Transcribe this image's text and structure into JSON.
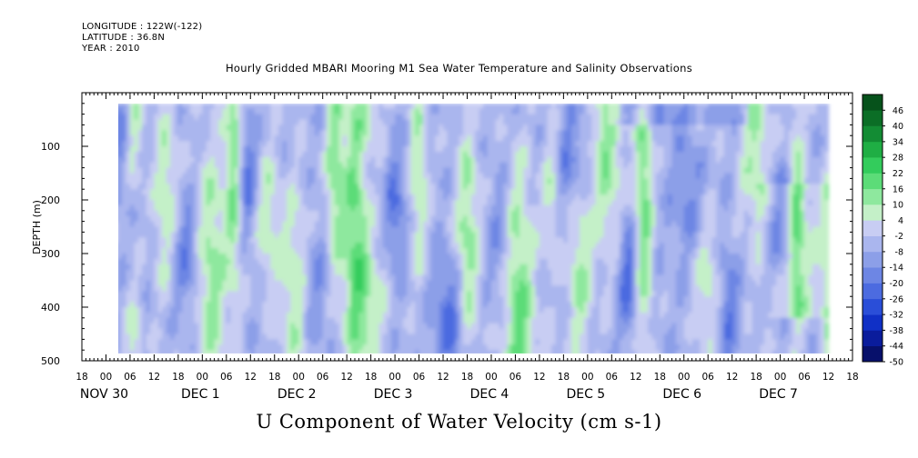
{
  "header": {
    "longitude": "LONGITUDE : 122W(-122)",
    "latitude": "LATITUDE : 36.8N",
    "year": "YEAR : 2010"
  },
  "chart_data": {
    "type": "heatmap",
    "title": "Hourly Gridded MBARI Mooring M1 Sea Water Temperature and Salinity Observations",
    "xlabel": "U Component of Water Velocity (cm s-1)",
    "ylabel": "DEPTH (m)",
    "y_axis": {
      "range": [
        0,
        500
      ],
      "inverted": true,
      "ticks": [
        100,
        200,
        300,
        400,
        500
      ],
      "data_top": 20,
      "data_bottom": 485
    },
    "x_axis": {
      "range_hours": [
        -6,
        186
      ],
      "data_start_hour": 0,
      "data_end_hour": 180,
      "hour_ticks": [
        {
          "h": -6,
          "label": "18"
        },
        {
          "h": 0,
          "label": "00"
        },
        {
          "h": 6,
          "label": "06"
        },
        {
          "h": 12,
          "label": "12"
        },
        {
          "h": 18,
          "label": "18"
        },
        {
          "h": 24,
          "label": "00"
        },
        {
          "h": 30,
          "label": "06"
        },
        {
          "h": 36,
          "label": "12"
        },
        {
          "h": 42,
          "label": "18"
        },
        {
          "h": 48,
          "label": "00"
        },
        {
          "h": 54,
          "label": "06"
        },
        {
          "h": 60,
          "label": "12"
        },
        {
          "h": 66,
          "label": "18"
        },
        {
          "h": 72,
          "label": "00"
        },
        {
          "h": 78,
          "label": "06"
        },
        {
          "h": 84,
          "label": "12"
        },
        {
          "h": 90,
          "label": "18"
        },
        {
          "h": 96,
          "label": "00"
        },
        {
          "h": 102,
          "label": "06"
        },
        {
          "h": 108,
          "label": "12"
        },
        {
          "h": 114,
          "label": "18"
        },
        {
          "h": 120,
          "label": "00"
        },
        {
          "h": 126,
          "label": "06"
        },
        {
          "h": 132,
          "label": "12"
        },
        {
          "h": 138,
          "label": "18"
        },
        {
          "h": 144,
          "label": "00"
        },
        {
          "h": 150,
          "label": "06"
        },
        {
          "h": 156,
          "label": "12"
        },
        {
          "h": 162,
          "label": "18"
        },
        {
          "h": 168,
          "label": "00"
        },
        {
          "h": 174,
          "label": "06"
        },
        {
          "h": 180,
          "label": "12"
        },
        {
          "h": 186,
          "label": "18"
        }
      ],
      "day_labels": [
        {
          "h": 0,
          "label": "NOV 30"
        },
        {
          "h": 24,
          "label": "DEC  1"
        },
        {
          "h": 48,
          "label": "DEC  2"
        },
        {
          "h": 72,
          "label": "DEC  3"
        },
        {
          "h": 96,
          "label": "DEC  4"
        },
        {
          "h": 120,
          "label": "DEC  5"
        },
        {
          "h": 144,
          "label": "DEC  6"
        },
        {
          "h": 168,
          "label": "DEC  7"
        }
      ]
    },
    "colorbar": {
      "levels": [
        -50,
        -44,
        -38,
        -32,
        -26,
        -20,
        -14,
        -8,
        -2,
        4,
        10,
        16,
        22,
        28,
        34,
        40,
        46
      ],
      "labels": [
        "46",
        "40",
        "34",
        "28",
        "22",
        "16",
        "10",
        "4",
        "-2",
        "-8",
        "-14",
        "-20",
        "-26",
        "-32",
        "-38",
        "-44",
        "-50"
      ],
      "colors": [
        "#07106b",
        "#0a1c9c",
        "#1030c6",
        "#2a4ed8",
        "#4c6be0",
        "#6d86e4",
        "#8c9fe8",
        "#aab6ee",
        "#c8cdf3",
        "#c4f0c8",
        "#8ee89e",
        "#5cdc78",
        "#33cc5c",
        "#1fae44",
        "#138c34",
        "#0b6e26",
        "#06521b"
      ]
    },
    "field_summary": {
      "value_range_shown": [
        -26,
        22
      ],
      "dominant": "weak negative (-8 to -2) blue background",
      "positive_bands_near_hours": [
        7,
        15,
        26,
        32,
        40,
        47,
        57,
        62,
        66,
        78,
        90,
        103,
        111,
        118,
        125,
        134,
        150,
        162,
        172,
        182
      ],
      "negative_cores_near_hours": [
        4,
        20,
        35,
        52,
        72,
        86,
        98,
        116,
        130,
        145,
        155,
        168
      ]
    }
  }
}
